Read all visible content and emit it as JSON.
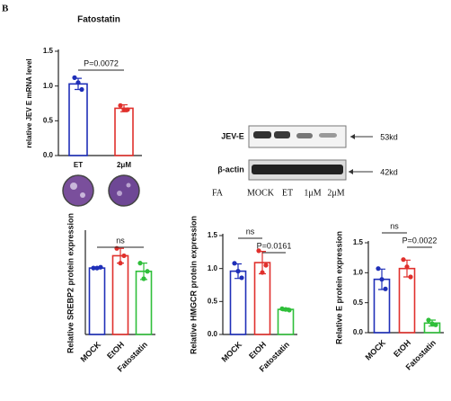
{
  "figure_label": "B",
  "blot": {
    "rows": [
      "JEV-E",
      "β-actin"
    ],
    "sizes": [
      "53kd",
      "42kd"
    ],
    "lane_header": "FA",
    "lanes": [
      "MOCK",
      "ET",
      "1μM",
      "2μM"
    ]
  },
  "chart_data": [
    {
      "type": "bar",
      "title": "Fatostatin",
      "ylabel": "relative JEV E mRNA level",
      "categories": [
        "ET",
        "2μM"
      ],
      "colors": [
        "#1f2fb8",
        "#e0302c"
      ],
      "values": [
        1.03,
        0.68
      ],
      "errors": [
        0.08,
        0.05
      ],
      "points": [
        [
          1.12,
          1.05,
          0.95
        ],
        [
          0.72,
          0.66,
          0.66
        ]
      ],
      "ylim": [
        0,
        1.5
      ],
      "yticks": [
        {
          "value": 0,
          "label": "0.0"
        },
        {
          "value": 0.5,
          "label": "0.5"
        },
        {
          "value": 1,
          "label": "1.0"
        },
        {
          "value": 1.5,
          "label": "1.5"
        }
      ],
      "annotations": [
        "P=0.0072"
      ]
    },
    {
      "type": "bar",
      "ylabel": "Relative SREBP2 protein expression",
      "categories": [
        "MOCK",
        "EtOH",
        "Fatostatin"
      ],
      "colors": [
        "#1f2fb8",
        "#e0302c",
        "#2fbf3a"
      ],
      "values": [
        0.81,
        0.96,
        0.77
      ],
      "errors": [
        0.01,
        0.09,
        0.1
      ],
      "points": [
        [
          0.81,
          0.81,
          0.82
        ],
        [
          1.05,
          0.87,
          0.96
        ],
        [
          0.87,
          0.68,
          0.77
        ]
      ],
      "ylim": [
        0,
        1.25
      ],
      "annotations": [
        "ns"
      ]
    },
    {
      "type": "bar",
      "ylabel": "Relative HMGCR protein expression",
      "categories": [
        "MOCK",
        "EtOH",
        "Fatostatin"
      ],
      "colors": [
        "#1f2fb8",
        "#e0302c",
        "#2fbf3a"
      ],
      "values": [
        0.96,
        1.09,
        0.38
      ],
      "errors": [
        0.11,
        0.17,
        0.02
      ],
      "points": [
        [
          1.08,
          0.96,
          0.86
        ],
        [
          1.27,
          0.94,
          1.05
        ],
        [
          0.39,
          0.38,
          0.37
        ]
      ],
      "ylim": [
        0,
        1.5
      ],
      "yticks": [
        {
          "value": 0,
          "label": "0.0"
        },
        {
          "value": 0.5,
          "label": "0.5"
        },
        {
          "value": 1,
          "label": "1.0"
        },
        {
          "value": 1.5,
          "label": "1.5"
        }
      ],
      "annotations": [
        "ns",
        "P=0.0161"
      ]
    },
    {
      "type": "bar",
      "ylabel": "Relative E protein expression",
      "categories": [
        "MOCK",
        "EtOH",
        "Fatostatin"
      ],
      "colors": [
        "#1f2fb8",
        "#e0302c",
        "#2fbf3a"
      ],
      "values": [
        0.89,
        1.07,
        0.16
      ],
      "errors": [
        0.17,
        0.14,
        0.05
      ],
      "points": [
        [
          1.07,
          0.89,
          0.73
        ],
        [
          1.22,
          1.1,
          0.93
        ],
        [
          0.21,
          0.15,
          0.13
        ]
      ],
      "ylim": [
        0,
        1.5
      ],
      "yticks": [
        {
          "value": 0,
          "label": "0.0"
        },
        {
          "value": 0.5,
          "label": "0.5"
        },
        {
          "value": 1,
          "label": "1.0"
        },
        {
          "value": 1.5,
          "label": "1.5"
        }
      ],
      "annotations": [
        "ns",
        "P=0.0022"
      ]
    }
  ]
}
